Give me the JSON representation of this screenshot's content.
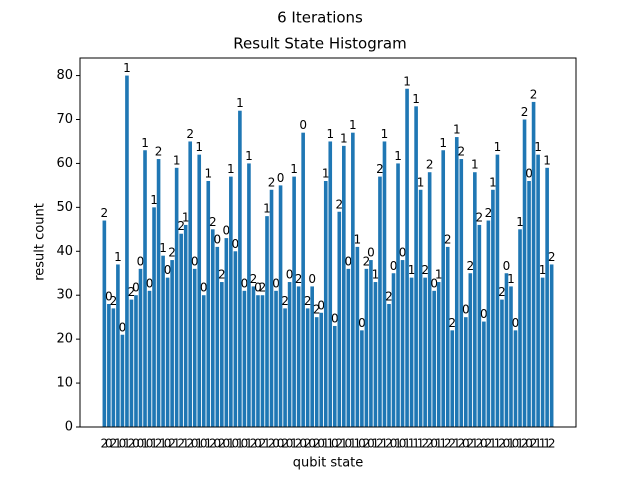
{
  "chart_data": {
    "type": "bar",
    "title": "6 Iterations",
    "subtitle": "Result State Histogram",
    "x_label": "qubit state",
    "y_label": "result count",
    "color": "#1f77b4",
    "categories": [
      "2",
      "0",
      "2",
      "1",
      "0",
      "1",
      "2",
      "0",
      "0",
      "1",
      "0",
      "1",
      "2",
      "1",
      "0",
      "2",
      "1",
      "2",
      "1",
      "2",
      "0",
      "1",
      "0",
      "1",
      "2",
      "0",
      "2",
      "0",
      "1",
      "0",
      "1",
      "0",
      "1",
      "2",
      "0",
      "2",
      "1",
      "2",
      "0",
      "0",
      "2",
      "0",
      "1",
      "2",
      "0",
      "2",
      "0",
      "2",
      "0",
      "1",
      "1",
      "0",
      "2",
      "1",
      "0",
      "1",
      "1",
      "0",
      "2",
      "0",
      "1",
      "2",
      "1",
      "2",
      "0",
      "1",
      "0",
      "1",
      "1",
      "1",
      "1",
      "2",
      "2",
      "0",
      "1",
      "1",
      "2",
      "2",
      "1",
      "2",
      "0",
      "2",
      "1",
      "2",
      "0",
      "2",
      "1",
      "1",
      "2",
      "0",
      "1",
      "0",
      "1",
      "2",
      "0",
      "2",
      "1",
      "1",
      "1",
      "2"
    ],
    "values": [
      47,
      28,
      27,
      37,
      21,
      80,
      29,
      30,
      36,
      63,
      31,
      50,
      61,
      39,
      34,
      38,
      59,
      44,
      46,
      65,
      36,
      62,
      30,
      56,
      45,
      41,
      33,
      43,
      57,
      40,
      72,
      31,
      60,
      32,
      30,
      30,
      48,
      54,
      31,
      55,
      27,
      33,
      57,
      32,
      67,
      27,
      32,
      25,
      26,
      56,
      65,
      23,
      49,
      64,
      36,
      67,
      41,
      22,
      36,
      38,
      33,
      57,
      65,
      28,
      35,
      60,
      38,
      77,
      34,
      73,
      54,
      34,
      58,
      31,
      33,
      63,
      41,
      22,
      66,
      61,
      25,
      35,
      58,
      46,
      24,
      47,
      54,
      62,
      29,
      35,
      32,
      22,
      45,
      70,
      56,
      74,
      62,
      34,
      59,
      37
    ],
    "ylim": [
      0,
      84
    ],
    "yticks": [
      0,
      10,
      20,
      30,
      40,
      50,
      60,
      70,
      80
    ]
  }
}
